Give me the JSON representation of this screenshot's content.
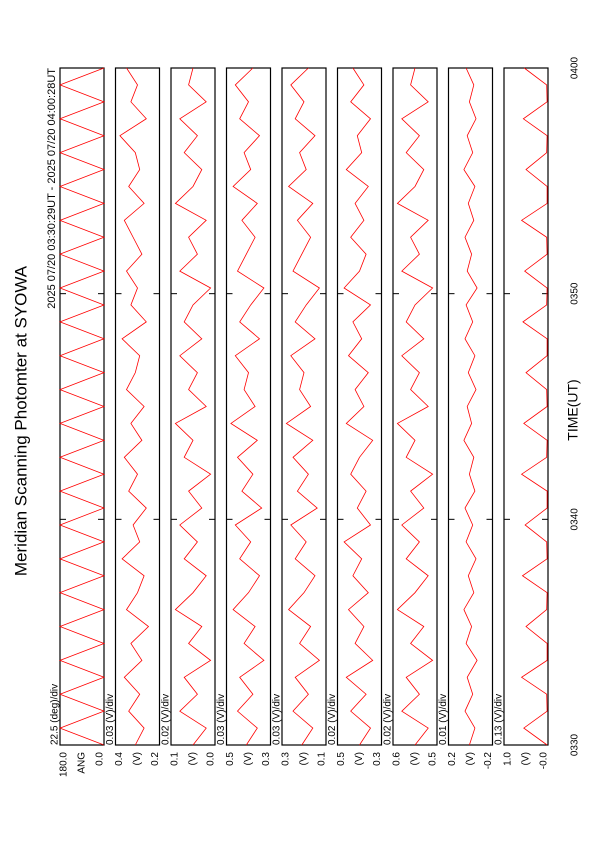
{
  "chart_data": {
    "type": "line",
    "title": "Meridian Scanning Photomter at SYOWA",
    "subtitle": "2025 07/20 03:30:29UT - 2025 07/20 04:00:28UT",
    "xlabel": "TIME(UT)",
    "xlim": [
      210,
      240
    ],
    "xticks": [
      {
        "value": 210,
        "label": "0330"
      },
      {
        "value": 220,
        "label": "0340"
      },
      {
        "value": 230,
        "label": "0350"
      },
      {
        "value": 240,
        "label": "0400"
      }
    ],
    "x": [
      210,
      210.75,
      211.5,
      212.25,
      213,
      213.75,
      214.5,
      215.25,
      216,
      216.75,
      217.5,
      218.25,
      219,
      219.75,
      220.5,
      221.25,
      222,
      222.75,
      223.5,
      224.25,
      225,
      225.75,
      226.5,
      227.25,
      228,
      228.75,
      229.5,
      230.25,
      231,
      231.75,
      232.5,
      233.25,
      234,
      234.75,
      235.5,
      236.25,
      237,
      237.75,
      238.5,
      239.25,
      240
    ],
    "series": [
      {
        "name": "22.5 (deg)/div",
        "ylabel": "ANG",
        "color": "#ff0000",
        "ylim": [
          0,
          180
        ],
        "yticks": [
          {
            "value": 180,
            "label": "180.0"
          },
          {
            "value": 0,
            "label": "0.0"
          }
        ],
        "values": [
          0,
          180,
          0,
          180,
          0,
          180,
          0,
          180,
          0,
          180,
          0,
          180,
          0,
          180,
          0,
          180,
          0,
          180,
          0,
          180,
          0,
          180,
          0,
          180,
          0,
          180,
          0,
          180,
          0,
          180,
          0,
          180,
          0,
          180,
          0,
          180,
          0,
          180,
          0,
          180,
          0
        ]
      },
      {
        "name": "0.03 (V)/div",
        "ylabel": "(V)",
        "color": "#ff0000",
        "ylim": [
          0.2,
          0.4
        ],
        "yticks": [
          0.4,
          0.2
        ],
        "values": [
          0.31,
          0.27,
          0.34,
          0.29,
          0.36,
          0.28,
          0.33,
          0.25,
          0.35,
          0.3,
          0.27,
          0.37,
          0.29,
          0.32,
          0.26,
          0.34,
          0.3,
          0.36,
          0.28,
          0.33,
          0.27,
          0.35,
          0.31,
          0.29,
          0.37,
          0.26,
          0.33,
          0.3,
          0.35,
          0.28,
          0.32,
          0.36,
          0.27,
          0.34,
          0.29,
          0.31,
          0.38,
          0.26,
          0.33,
          0.3,
          0.35
        ]
      },
      {
        "name": "0.02 (V)/div",
        "ylabel": "(V)",
        "color": "#ff0000",
        "ylim": [
          0,
          0.1
        ],
        "yticks": [
          0.1,
          {
            "value": 0,
            "label": "0.0"
          }
        ],
        "values": [
          0.05,
          0.02,
          0.08,
          0.04,
          0.07,
          0.01,
          0.06,
          0.03,
          0.09,
          0.05,
          0.02,
          0.07,
          0.04,
          0.08,
          0.03,
          0.06,
          0.01,
          0.07,
          0.05,
          0.09,
          0.02,
          0.06,
          0.04,
          0.08,
          0.03,
          0.07,
          0.05,
          0.01,
          0.08,
          0.04,
          0.06,
          0.02,
          0.09,
          0.05,
          0.03,
          0.07,
          0.04,
          0.08,
          0.02,
          0.06,
          0.05
        ]
      },
      {
        "name": "0.03 (V)/div",
        "ylabel": "(V)",
        "color": "#ff0000",
        "ylim": [
          0.3,
          0.5
        ],
        "yticks": [
          0.5,
          0.3
        ],
        "values": [
          0.41,
          0.36,
          0.45,
          0.38,
          0.44,
          0.33,
          0.42,
          0.37,
          0.47,
          0.4,
          0.35,
          0.44,
          0.39,
          0.46,
          0.34,
          0.43,
          0.38,
          0.45,
          0.36,
          0.48,
          0.37,
          0.42,
          0.4,
          0.46,
          0.35,
          0.44,
          0.39,
          0.33,
          0.45,
          0.41,
          0.37,
          0.43,
          0.36,
          0.47,
          0.39,
          0.42,
          0.35,
          0.44,
          0.4,
          0.46,
          0.38
        ]
      },
      {
        "name": "0.03 (V)/div",
        "ylabel": "(V)",
        "color": "#ff0000",
        "ylim": [
          0.1,
          0.3
        ],
        "yticks": [
          0.3,
          0.1
        ],
        "values": [
          0.21,
          0.16,
          0.25,
          0.18,
          0.24,
          0.13,
          0.22,
          0.17,
          0.27,
          0.2,
          0.15,
          0.24,
          0.19,
          0.26,
          0.14,
          0.23,
          0.18,
          0.25,
          0.16,
          0.28,
          0.17,
          0.22,
          0.2,
          0.26,
          0.15,
          0.24,
          0.19,
          0.13,
          0.25,
          0.21,
          0.17,
          0.23,
          0.16,
          0.27,
          0.19,
          0.22,
          0.15,
          0.24,
          0.2,
          0.26,
          0.18
        ]
      },
      {
        "name": "0.02 (V)/div",
        "ylabel": "(V)",
        "color": "#ff0000",
        "ylim": [
          0.3,
          0.5
        ],
        "yticks": [
          0.5,
          0.3
        ],
        "values": [
          0.4,
          0.35,
          0.44,
          0.37,
          0.46,
          0.34,
          0.42,
          0.38,
          0.45,
          0.36,
          0.43,
          0.39,
          0.47,
          0.35,
          0.41,
          0.37,
          0.44,
          0.4,
          0.34,
          0.46,
          0.38,
          0.42,
          0.36,
          0.45,
          0.39,
          0.43,
          0.35,
          0.47,
          0.4,
          0.37,
          0.44,
          0.38,
          0.42,
          0.36,
          0.46,
          0.39,
          0.41,
          0.35,
          0.44,
          0.38,
          0.43
        ]
      },
      {
        "name": "0.02 (V)/div",
        "ylabel": "(V)",
        "color": "#ff0000",
        "ylim": [
          0.5,
          0.6
        ],
        "yticks": [
          0.6,
          0.5
        ],
        "values": [
          0.55,
          0.52,
          0.58,
          0.54,
          0.57,
          0.51,
          0.56,
          0.53,
          0.59,
          0.55,
          0.52,
          0.57,
          0.54,
          0.58,
          0.53,
          0.56,
          0.51,
          0.57,
          0.55,
          0.59,
          0.52,
          0.56,
          0.54,
          0.58,
          0.53,
          0.57,
          0.55,
          0.51,
          0.58,
          0.54,
          0.56,
          0.52,
          0.59,
          0.55,
          0.53,
          0.57,
          0.54,
          0.58,
          0.52,
          0.56,
          0.55
        ]
      },
      {
        "name": "0.01 (V)/div",
        "ylabel": "(V)",
        "color": "#ff0000",
        "ylim": [
          -0.2,
          0.2
        ],
        "yticks": [
          0.2,
          -0.2
        ],
        "values": [
          0.01,
          -0.04,
          0.05,
          -0.02,
          0.03,
          -0.06,
          0.04,
          -0.01,
          0.06,
          -0.03,
          0.02,
          -0.05,
          0.04,
          -0.02,
          0.05,
          -0.04,
          0.01,
          -0.03,
          0.06,
          -0.01,
          0.03,
          -0.05,
          0.02,
          -0.04,
          0.05,
          -0.02,
          0.04,
          -0.06,
          0.03,
          -0.01,
          0.05,
          -0.03,
          0.02,
          -0.04,
          0.06,
          -0.02,
          0.03,
          -0.05,
          0.01,
          -0.03,
          0.04
        ]
      },
      {
        "name": "0.13 (V)/div",
        "ylabel": "(V)",
        "color": "#ff0000",
        "ylim": [
          0,
          1
        ],
        "yticks": [
          {
            "value": 1,
            "label": "1.0"
          },
          {
            "value": 0,
            "label": "-0.0"
          }
        ],
        "values": [
          0.02,
          0.55,
          0.02,
          0.03,
          0.6,
          0.02,
          0.02,
          0.5,
          0.03,
          0.02,
          0.58,
          0.02,
          0.03,
          0.52,
          0.02,
          0.02,
          0.6,
          0.03,
          0.02,
          0.55,
          0.02,
          0.03,
          0.5,
          0.02,
          0.02,
          0.57,
          0.03,
          0.02,
          0.53,
          0.02,
          0.03,
          0.6,
          0.02,
          0.02,
          0.5,
          0.03,
          0.02,
          0.56,
          0.02,
          0.03,
          0.54
        ]
      }
    ]
  }
}
